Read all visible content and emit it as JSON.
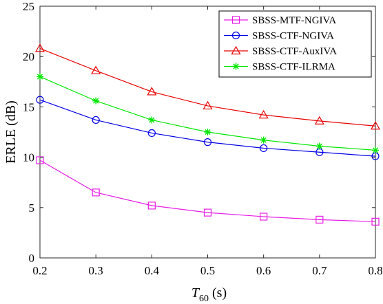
{
  "chart_data": {
    "type": "line",
    "x": [
      0.2,
      0.3,
      0.4,
      0.5,
      0.6,
      0.7,
      0.8
    ],
    "xticks": [
      "0.2",
      "0.3",
      "0.4",
      "0.5",
      "0.6",
      "0.7",
      "0.8"
    ],
    "yticks": [
      "0",
      "5",
      "10",
      "15",
      "20",
      "25"
    ],
    "xlim": [
      0.2,
      0.8
    ],
    "ylim": [
      0,
      25
    ],
    "xlabel_main": "T",
    "xlabel_sub": "60",
    "xlabel_unit": " (s)",
    "ylabel": "ERLE (dB)",
    "grid": false,
    "legend_position": "top-right",
    "series": [
      {
        "name": "SBSS-MTF-NGIVA",
        "color": "#e61be6",
        "marker": "square",
        "values": [
          9.7,
          6.5,
          5.2,
          4.5,
          4.1,
          3.8,
          3.6
        ]
      },
      {
        "name": "SBSS-CTF-NGIVA",
        "color": "#0000e6",
        "marker": "circle",
        "values": [
          15.7,
          13.7,
          12.4,
          11.5,
          10.9,
          10.5,
          10.1
        ]
      },
      {
        "name": "SBSS-CTF-AuxIVA",
        "color": "#e60000",
        "marker": "triangle",
        "values": [
          20.8,
          18.6,
          16.5,
          15.1,
          14.2,
          13.6,
          13.1
        ]
      },
      {
        "name": "SBSS-CTF-ILRMA",
        "color": "#00e600",
        "marker": "asterisk",
        "values": [
          18.0,
          15.6,
          13.7,
          12.5,
          11.7,
          11.1,
          10.7
        ]
      }
    ]
  }
}
